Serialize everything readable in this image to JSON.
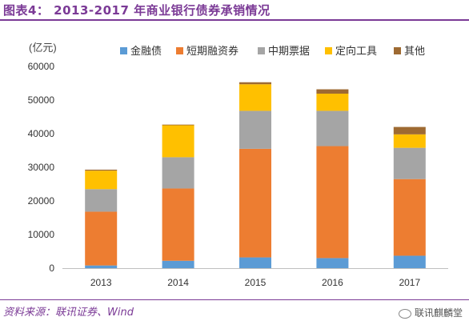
{
  "header": {
    "title": "图表4：  2013-2017 年商业银行债券承销情况"
  },
  "footer": {
    "source": "资料来源：联讯证券、Wind",
    "watermark": "联讯麒麟堂"
  },
  "colors": {
    "title": "#7b3a96"
  },
  "chart_data": {
    "type": "bar",
    "stacked": true,
    "title": "",
    "unit_label": "(亿元)",
    "xlabel": "",
    "ylabel": "",
    "ylim": [
      0,
      60000
    ],
    "yticks": [
      0,
      10000,
      20000,
      30000,
      40000,
      50000,
      60000
    ],
    "grid": false,
    "legend_position": "top",
    "categories": [
      "2013",
      "2014",
      "2015",
      "2016",
      "2017"
    ],
    "series": [
      {
        "name": "金融债",
        "color": "#5b9bd5",
        "values": [
          800,
          2200,
          3200,
          3000,
          3700
        ]
      },
      {
        "name": "短期融资券",
        "color": "#ed7d31",
        "values": [
          16000,
          21500,
          32300,
          33300,
          22800
        ]
      },
      {
        "name": "中期票据",
        "color": "#a5a5a5",
        "values": [
          6700,
          9300,
          11300,
          10500,
          9300
        ]
      },
      {
        "name": "定向工具",
        "color": "#ffc000",
        "values": [
          5500,
          9500,
          7900,
          5100,
          4000
        ]
      },
      {
        "name": "其他",
        "color": "#9e6a32",
        "values": [
          300,
          200,
          600,
          1300,
          2200
        ]
      }
    ]
  }
}
